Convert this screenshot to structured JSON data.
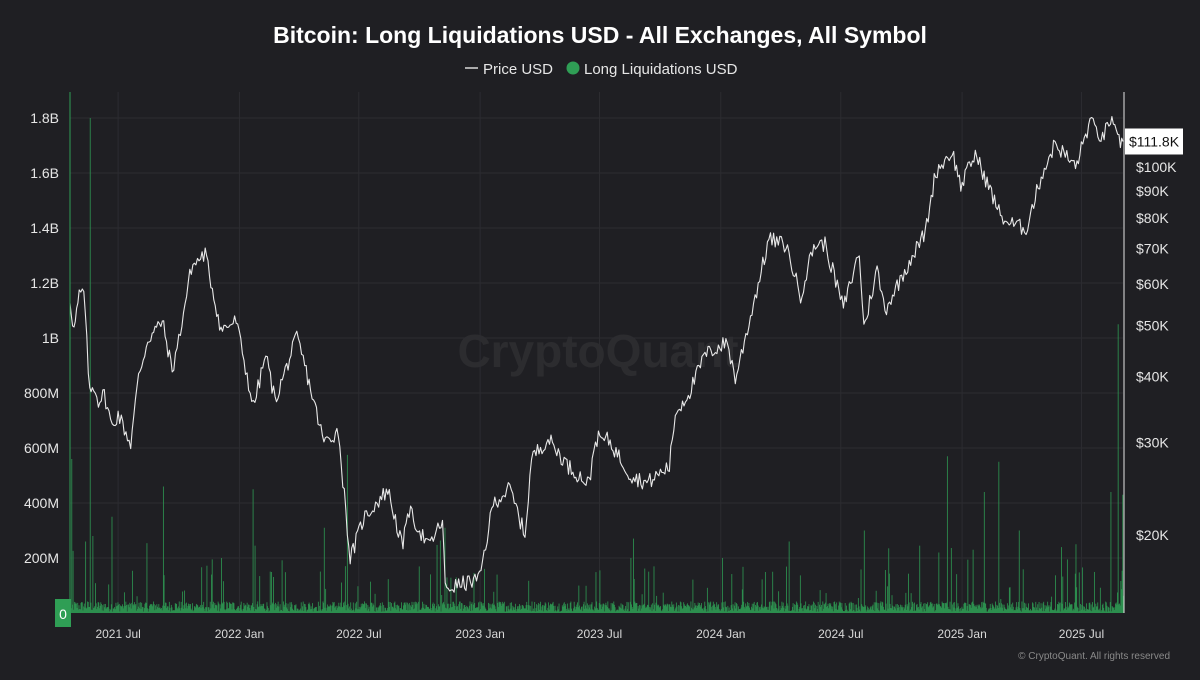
{
  "chart_data": {
    "type": "line+bar",
    "title": "Bitcoin: Long Liquidations USD - All Exchanges, All Symbol",
    "legend": [
      {
        "name": "Price USD",
        "color": "#d9d9d9",
        "marker": "line"
      },
      {
        "name": "Long Liquidations USD",
        "color": "#2f9e55",
        "marker": "dot"
      }
    ],
    "legend_position": "top-center",
    "watermark": "CryptoQuant",
    "copyright": "© CryptoQuant. All rights reserved",
    "x_ticks": [
      "2021 Jul",
      "2022 Jan",
      "2022 Jul",
      "2023 Jan",
      "2023 Jul",
      "2024 Jan",
      "2024 Jul",
      "2025 Jan",
      "2025 Jul"
    ],
    "x_range": [
      "2021-04-19",
      "2025-09-02"
    ],
    "left_axis": {
      "label": "",
      "ticks": [
        "0",
        "200M",
        "400M",
        "600M",
        "800M",
        "1B",
        "1.2B",
        "1.4B",
        "1.6B",
        "1.8B"
      ],
      "range": [
        0,
        1900000000
      ]
    },
    "right_axis": {
      "label": "",
      "scale": "log",
      "ticks": [
        "$20K",
        "$30K",
        "$40K",
        "$50K",
        "$60K",
        "$70K",
        "$80K",
        "$90K",
        "$100K"
      ],
      "current_value_label": "$111.8K",
      "current_value": 111800
    },
    "grid": true,
    "price_series": {
      "name": "Price USD",
      "points": [
        [
          "2021-04-19",
          56000
        ],
        [
          "2021-04-25",
          49000
        ],
        [
          "2021-05-03",
          57000
        ],
        [
          "2021-05-10",
          58000
        ],
        [
          "2021-05-19",
          37000
        ],
        [
          "2021-05-25",
          38500
        ],
        [
          "2021-06-01",
          36000
        ],
        [
          "2021-06-10",
          37000
        ],
        [
          "2021-06-22",
          32000
        ],
        [
          "2021-07-01",
          34000
        ],
        [
          "2021-07-20",
          29800
        ],
        [
          "2021-08-01",
          40000
        ],
        [
          "2021-08-15",
          47000
        ],
        [
          "2021-09-06",
          51000
        ],
        [
          "2021-09-21",
          41000
        ],
        [
          "2021-10-01",
          47000
        ],
        [
          "2021-10-20",
          64500
        ],
        [
          "2021-11-10",
          68500
        ],
        [
          "2021-12-04",
          49000
        ],
        [
          "2021-12-27",
          51000
        ],
        [
          "2022-01-22",
          35000
        ],
        [
          "2022-02-10",
          44000
        ],
        [
          "2022-02-24",
          36000
        ],
        [
          "2022-03-29",
          47500
        ],
        [
          "2022-04-10",
          42000
        ],
        [
          "2022-05-09",
          30000
        ],
        [
          "2022-05-31",
          31500
        ],
        [
          "2022-06-18",
          18000
        ],
        [
          "2022-07-08",
          21500
        ],
        [
          "2022-08-14",
          24400
        ],
        [
          "2022-09-06",
          18800
        ],
        [
          "2022-09-13",
          22500
        ],
        [
          "2022-10-15",
          19000
        ],
        [
          "2022-11-05",
          21300
        ],
        [
          "2022-11-09",
          15800
        ],
        [
          "2022-12-31",
          16500
        ],
        [
          "2023-01-21",
          23000
        ],
        [
          "2023-02-15",
          24500
        ],
        [
          "2023-03-10",
          20000
        ],
        [
          "2023-03-20",
          28000
        ],
        [
          "2023-04-14",
          30500
        ],
        [
          "2023-05-15",
          27000
        ],
        [
          "2023-06-15",
          25000
        ],
        [
          "2023-06-25",
          30500
        ],
        [
          "2023-07-15",
          30300
        ],
        [
          "2023-08-17",
          26000
        ],
        [
          "2023-09-11",
          25100
        ],
        [
          "2023-10-15",
          27000
        ],
        [
          "2023-10-24",
          34000
        ],
        [
          "2023-11-15",
          37500
        ],
        [
          "2023-12-08",
          44000
        ],
        [
          "2024-01-11",
          46500
        ],
        [
          "2024-01-23",
          39500
        ],
        [
          "2024-02-15",
          52000
        ],
        [
          "2024-03-14",
          73000
        ],
        [
          "2024-04-09",
          71000
        ],
        [
          "2024-05-01",
          57000
        ],
        [
          "2024-05-21",
          71000
        ],
        [
          "2024-06-07",
          71500
        ],
        [
          "2024-07-05",
          54000
        ],
        [
          "2024-07-29",
          69000
        ],
        [
          "2024-08-05",
          49500
        ],
        [
          "2024-08-25",
          64000
        ],
        [
          "2024-09-06",
          53500
        ],
        [
          "2024-10-15",
          67000
        ],
        [
          "2024-11-06",
          75000
        ],
        [
          "2024-11-22",
          98000
        ],
        [
          "2024-12-17",
          107000
        ],
        [
          "2024-12-30",
          92000
        ],
        [
          "2025-01-21",
          106000
        ],
        [
          "2025-02-28",
          81000
        ],
        [
          "2025-03-11",
          78500
        ],
        [
          "2025-04-08",
          76300
        ],
        [
          "2025-05-01",
          96000
        ],
        [
          "2025-05-22",
          111000
        ],
        [
          "2025-06-22",
          100000
        ],
        [
          "2025-07-14",
          122000
        ],
        [
          "2025-08-02",
          113000
        ],
        [
          "2025-08-14",
          123500
        ],
        [
          "2025-08-25",
          112000
        ],
        [
          "2025-09-02",
          111800
        ]
      ]
    },
    "liquidation_series": {
      "name": "Long Liquidations USD",
      "baseline": 25000000,
      "spikes": [
        [
          "2021-04-21",
          560000000
        ],
        [
          "2021-05-12",
          260000000
        ],
        [
          "2021-05-19",
          1800000000
        ],
        [
          "2021-05-23",
          280000000
        ],
        [
          "2021-06-21",
          350000000
        ],
        [
          "2021-09-07",
          460000000
        ],
        [
          "2021-12-04",
          200000000
        ],
        [
          "2022-01-21",
          450000000
        ],
        [
          "2022-05-09",
          310000000
        ],
        [
          "2022-06-13",
          575000000
        ],
        [
          "2022-11-08",
          310000000
        ],
        [
          "2023-08-17",
          200000000
        ],
        [
          "2024-01-03",
          200000000
        ],
        [
          "2024-03-19",
          150000000
        ],
        [
          "2024-04-13",
          260000000
        ],
        [
          "2024-08-05",
          300000000
        ],
        [
          "2024-11-26",
          220000000
        ],
        [
          "2024-12-09",
          570000000
        ],
        [
          "2025-02-03",
          440000000
        ],
        [
          "2025-02-25",
          550000000
        ],
        [
          "2025-03-28",
          300000000
        ],
        [
          "2025-06-22",
          250000000
        ],
        [
          "2025-08-14",
          440000000
        ],
        [
          "2025-08-25",
          1050000000
        ],
        [
          "2025-09-01",
          430000000
        ]
      ]
    }
  }
}
